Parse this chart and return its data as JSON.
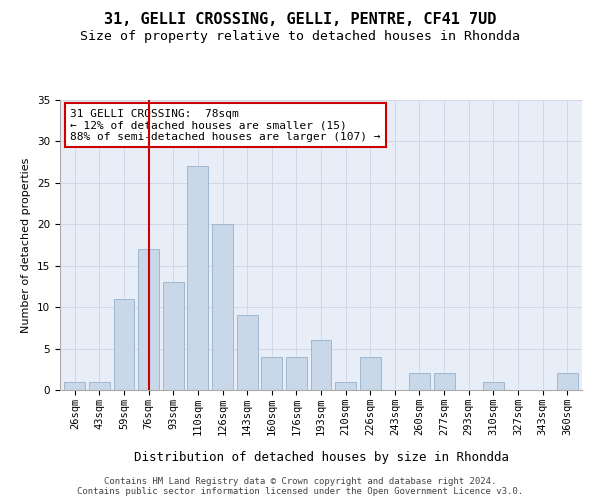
{
  "title": "31, GELLI CROSSING, GELLI, PENTRE, CF41 7UD",
  "subtitle": "Size of property relative to detached houses in Rhondda",
  "xlabel": "Distribution of detached houses by size in Rhondda",
  "ylabel": "Number of detached properties",
  "categories": [
    "26sqm",
    "43sqm",
    "59sqm",
    "76sqm",
    "93sqm",
    "110sqm",
    "126sqm",
    "143sqm",
    "160sqm",
    "176sqm",
    "193sqm",
    "210sqm",
    "226sqm",
    "243sqm",
    "260sqm",
    "277sqm",
    "293sqm",
    "310sqm",
    "327sqm",
    "343sqm",
    "360sqm"
  ],
  "values": [
    1,
    1,
    11,
    17,
    13,
    27,
    20,
    9,
    4,
    4,
    6,
    1,
    4,
    0,
    2,
    2,
    0,
    1,
    0,
    0,
    2
  ],
  "bar_color": "#c8d8e8",
  "bar_edge_color": "#a0b8d0",
  "vline_x_index": 3,
  "vline_color": "#cc0000",
  "annotation_text": "31 GELLI CROSSING:  78sqm\n← 12% of detached houses are smaller (15)\n88% of semi-detached houses are larger (107) →",
  "annotation_box_color": "#ffffff",
  "annotation_box_edge": "#cc0000",
  "ylim": [
    0,
    35
  ],
  "yticks": [
    0,
    5,
    10,
    15,
    20,
    25,
    30,
    35
  ],
  "grid_color": "#d0d8e8",
  "bg_color": "#e8eef8",
  "footer_text": "Contains HM Land Registry data © Crown copyright and database right 2024.\nContains public sector information licensed under the Open Government Licence v3.0.",
  "title_fontsize": 11,
  "subtitle_fontsize": 9.5,
  "xlabel_fontsize": 9,
  "ylabel_fontsize": 8,
  "tick_fontsize": 7.5,
  "annotation_fontsize": 8,
  "footer_fontsize": 6.5
}
